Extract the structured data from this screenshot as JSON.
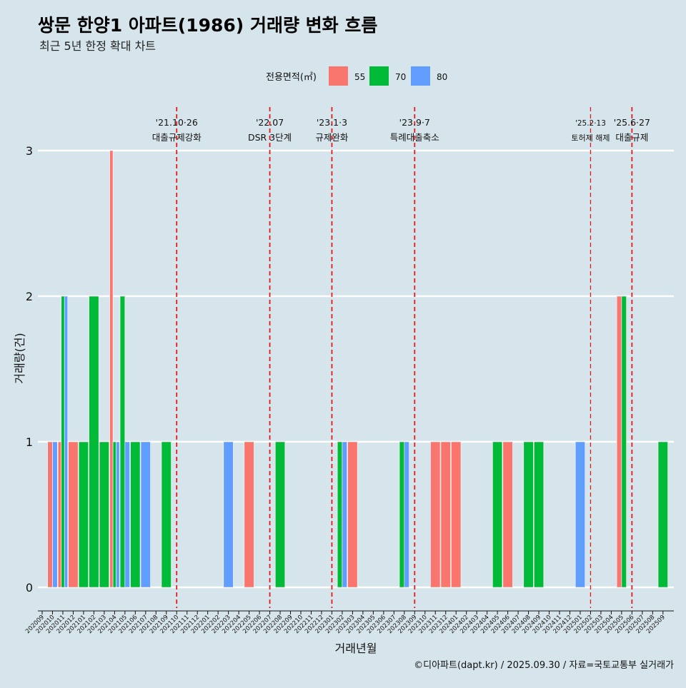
{
  "chart_data": {
    "type": "bar",
    "title": "쌍문 한양1 아파트(1986) 거래량 변화 흐름",
    "subtitle": "최근 5년 한정 확대 차트",
    "xlabel": "거래년월",
    "ylabel": "거래량(건)",
    "ylim": [
      0,
      3
    ],
    "yticks": [
      "0",
      "1",
      "2",
      "3"
    ],
    "caption": "©디아파트(dapt.kr) / 2025.09.30 / 자료=국토교통부 실거래가",
    "legend": {
      "title": "전용면적(㎡)",
      "position": "top",
      "entries": [
        {
          "label": "55",
          "color": "#f8766d"
        },
        {
          "label": "70",
          "color": "#00ba38"
        },
        {
          "label": "80",
          "color": "#619cff"
        }
      ]
    },
    "categories": [
      "202009",
      "202010",
      "202011",
      "202012",
      "202101",
      "202102",
      "202103",
      "202104",
      "202105",
      "202106",
      "202107",
      "202108",
      "202109",
      "202110",
      "202111",
      "202112",
      "202201",
      "202202",
      "202203",
      "202204",
      "202205",
      "202206",
      "202207",
      "202208",
      "202209",
      "202210",
      "202211",
      "202212",
      "202301",
      "202302",
      "202303",
      "202304",
      "202305",
      "202306",
      "202307",
      "202308",
      "202309",
      "202310",
      "202311",
      "202312",
      "202401",
      "202402",
      "202403",
      "202404",
      "202405",
      "202406",
      "202407",
      "202408",
      "202409",
      "202410",
      "202411",
      "202412",
      "202501",
      "202502",
      "202503",
      "202504",
      "202505",
      "202506",
      "202507",
      "202508",
      "202509"
    ],
    "bars": [
      {
        "month": "202010",
        "series": [
          {
            "area": "55",
            "value": 1
          },
          {
            "area": "80",
            "value": 1
          }
        ]
      },
      {
        "month": "202011",
        "series": [
          {
            "area": "55",
            "value": 1
          },
          {
            "area": "70",
            "value": 2
          },
          {
            "area": "80",
            "value": 2
          }
        ]
      },
      {
        "month": "202012",
        "series": [
          {
            "area": "55",
            "value": 1
          }
        ]
      },
      {
        "month": "202101",
        "series": [
          {
            "area": "70",
            "value": 1
          }
        ]
      },
      {
        "month": "202102",
        "series": [
          {
            "area": "70",
            "value": 2
          }
        ]
      },
      {
        "month": "202103",
        "series": [
          {
            "area": "70",
            "value": 1
          }
        ]
      },
      {
        "month": "202104",
        "series": [
          {
            "area": "55",
            "value": 3
          },
          {
            "area": "70",
            "value": 1
          },
          {
            "area": "80",
            "value": 1
          }
        ]
      },
      {
        "month": "202105",
        "series": [
          {
            "area": "70",
            "value": 2
          },
          {
            "area": "80",
            "value": 1
          }
        ]
      },
      {
        "month": "202106",
        "series": [
          {
            "area": "70",
            "value": 1
          }
        ]
      },
      {
        "month": "202107",
        "series": [
          {
            "area": "80",
            "value": 1
          }
        ]
      },
      {
        "month": "202109",
        "series": [
          {
            "area": "70",
            "value": 1
          }
        ]
      },
      {
        "month": "202203",
        "series": [
          {
            "area": "80",
            "value": 1
          }
        ]
      },
      {
        "month": "202205",
        "series": [
          {
            "area": "55",
            "value": 1
          }
        ]
      },
      {
        "month": "202208",
        "series": [
          {
            "area": "70",
            "value": 1
          }
        ]
      },
      {
        "month": "202302",
        "series": [
          {
            "area": "70",
            "value": 1
          },
          {
            "area": "80",
            "value": 1
          }
        ]
      },
      {
        "month": "202303",
        "series": [
          {
            "area": "55",
            "value": 1
          }
        ]
      },
      {
        "month": "202308",
        "series": [
          {
            "area": "70",
            "value": 1
          },
          {
            "area": "80",
            "value": 1
          }
        ]
      },
      {
        "month": "202311",
        "series": [
          {
            "area": "55",
            "value": 1
          }
        ]
      },
      {
        "month": "202312",
        "series": [
          {
            "area": "55",
            "value": 1
          }
        ]
      },
      {
        "month": "202401",
        "series": [
          {
            "area": "55",
            "value": 1
          }
        ]
      },
      {
        "month": "202405",
        "series": [
          {
            "area": "70",
            "value": 1
          }
        ]
      },
      {
        "month": "202406",
        "series": [
          {
            "area": "55",
            "value": 1
          }
        ]
      },
      {
        "month": "202408",
        "series": [
          {
            "area": "70",
            "value": 1
          }
        ]
      },
      {
        "month": "202409",
        "series": [
          {
            "area": "70",
            "value": 1
          }
        ]
      },
      {
        "month": "202501",
        "series": [
          {
            "area": "80",
            "value": 1
          }
        ]
      },
      {
        "month": "202505",
        "series": [
          {
            "area": "55",
            "value": 2
          },
          {
            "area": "70",
            "value": 2
          }
        ]
      },
      {
        "month": "202509",
        "series": [
          {
            "area": "70",
            "value": 1
          }
        ]
      }
    ],
    "annotations": [
      {
        "month": "202110",
        "date": "'21.10·26",
        "label": "대출규제강화",
        "small": false
      },
      {
        "month": "202207",
        "date": "'22.07",
        "label": "DSR 3단계",
        "small": false
      },
      {
        "month": "202301",
        "date": "'23.1·3",
        "label": "규제완화",
        "small": false
      },
      {
        "month": "202309",
        "date": "'23.9·7",
        "label": "특례대출축소",
        "small": false
      },
      {
        "month": "202502",
        "date": "'25.2·13",
        "label": "토허제 해제",
        "small": true
      },
      {
        "month": "202506",
        "date": "'25.6·27",
        "label": "대출규제",
        "small": false
      }
    ]
  }
}
